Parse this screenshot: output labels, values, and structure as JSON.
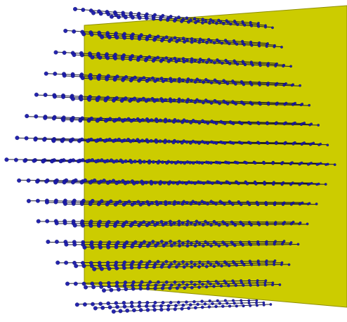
{
  "scene": {
    "colors": {
      "background": "#ffffff",
      "plane_fill": "#cccc00",
      "plane_stroke": "#8f8f00",
      "point_fill": "#1a1aaa",
      "point_stroke": "#0b0b66",
      "line_stroke": "#0a0a22"
    },
    "plane": {
      "visible": true
    },
    "point_array": {
      "rows": 15,
      "rays_per_row": 3
    }
  }
}
